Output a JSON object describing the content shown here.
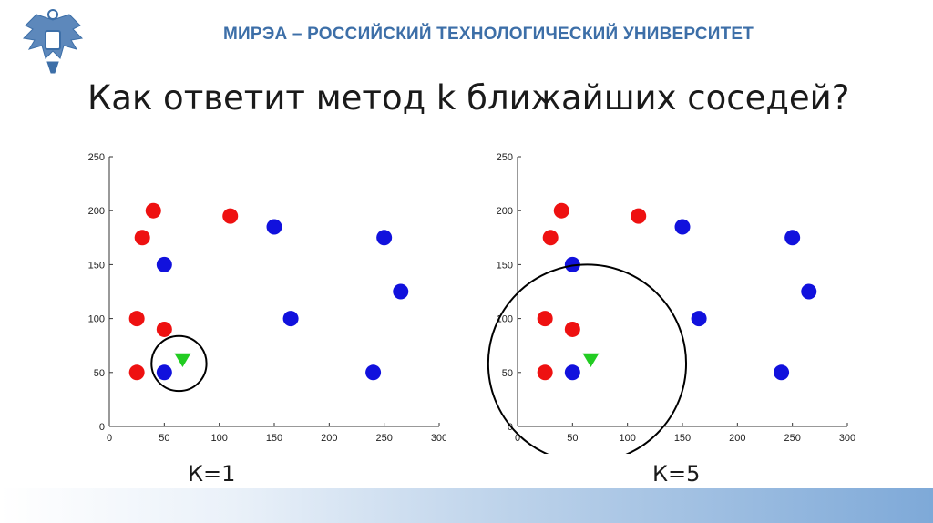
{
  "header": {
    "university": "МИРЭА – РОССИЙСКИЙ ТЕХНОЛОГИЧЕСКИЙ УНИВЕРСИТЕТ",
    "logo_icon": "double-headed-eagle-emblem",
    "title_color": "#3d6fa8"
  },
  "slide": {
    "title": "Как ответит метод k ближайших соседей?"
  },
  "colors": {
    "class_a": "#ee1111",
    "class_b": "#1111dd",
    "query": "#22cc22",
    "circle": "#000000"
  },
  "chart_data": [
    {
      "type": "scatter",
      "k_label": "К=1",
      "xlim": [
        0,
        300
      ],
      "ylim": [
        0,
        250
      ],
      "xticks": [
        0,
        50,
        100,
        150,
        200,
        250,
        300
      ],
      "yticks": [
        0,
        50,
        100,
        150,
        200,
        250
      ],
      "series": [
        {
          "color": "red",
          "points": [
            [
              40,
              200
            ],
            [
              110,
              195
            ],
            [
              30,
              175
            ],
            [
              25,
              100
            ],
            [
              50,
              90
            ],
            [
              25,
              50
            ]
          ]
        },
        {
          "color": "blue",
          "points": [
            [
              150,
              185
            ],
            [
              250,
              175
            ],
            [
              50,
              150
            ],
            [
              265,
              125
            ],
            [
              165,
              100
            ],
            [
              50,
              50
            ],
            [
              240,
              50
            ]
          ]
        }
      ],
      "query": {
        "marker": "triangle-down",
        "x": 65,
        "y": 60
      },
      "neighborhood_radius": 25
    },
    {
      "type": "scatter",
      "k_label": "К=5",
      "xlim": [
        0,
        300
      ],
      "ylim": [
        0,
        250
      ],
      "xticks": [
        0,
        50,
        100,
        150,
        200,
        250,
        300
      ],
      "yticks": [
        0,
        50,
        100,
        150,
        200,
        250
      ],
      "series": [
        {
          "color": "red",
          "points": [
            [
              40,
              200
            ],
            [
              110,
              195
            ],
            [
              30,
              175
            ],
            [
              25,
              100
            ],
            [
              50,
              90
            ],
            [
              25,
              50
            ]
          ]
        },
        {
          "color": "blue",
          "points": [
            [
              150,
              185
            ],
            [
              250,
              175
            ],
            [
              50,
              150
            ],
            [
              265,
              125
            ],
            [
              165,
              100
            ],
            [
              50,
              50
            ],
            [
              240,
              50
            ]
          ]
        }
      ],
      "query": {
        "marker": "triangle-down",
        "x": 65,
        "y": 60
      },
      "neighborhood_radius": 90
    }
  ]
}
